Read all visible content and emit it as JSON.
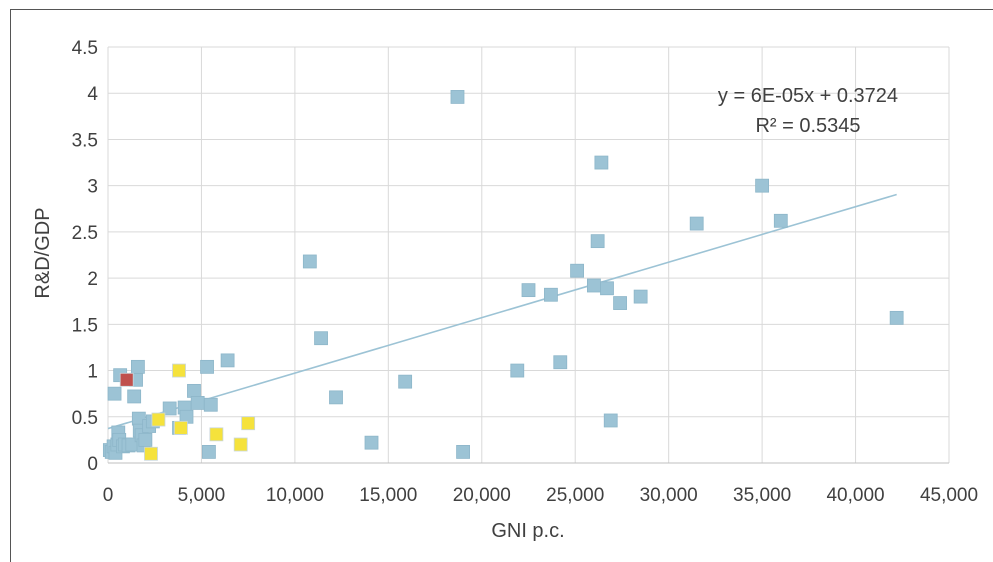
{
  "chart_data": {
    "type": "scatter",
    "xlabel": "GNI p.c.",
    "ylabel": "R&D/GDP",
    "xlim": [
      0,
      45000
    ],
    "ylim": [
      0,
      4.5
    ],
    "x_ticks": [
      "0",
      "5,000",
      "10,000",
      "15,000",
      "20,000",
      "25,000",
      "30,000",
      "35,000",
      "40,000",
      "45,000"
    ],
    "y_ticks": [
      "0",
      "0.5",
      "1",
      "1.5",
      "2",
      "2.5",
      "3",
      "3.5",
      "4",
      "4.5"
    ],
    "grid": "vertical and horizontal",
    "trendline": {
      "equation": "y = 6E-05x + 0.3724",
      "r_squared": "R² = 0.5345",
      "slope": 6e-05,
      "intercept": 0.3724,
      "x_range": [
        0,
        42200
      ],
      "color": "#9cc3d5"
    },
    "series": [
      {
        "color": "#9cc3d5",
        "points": [
          [
            100,
            0.14
          ],
          [
            200,
            0.12
          ],
          [
            300,
            0.18
          ],
          [
            400,
            0.11
          ],
          [
            500,
            0.2
          ],
          [
            350,
            0.75
          ],
          [
            550,
            0.33
          ],
          [
            650,
            0.95
          ],
          [
            600,
            0.25
          ],
          [
            800,
            0.18
          ],
          [
            900,
            0.2
          ],
          [
            1100,
            0.19
          ],
          [
            1300,
            0.2
          ],
          [
            1400,
            0.72
          ],
          [
            1500,
            0.9
          ],
          [
            1600,
            1.04
          ],
          [
            1650,
            0.48
          ],
          [
            1700,
            0.35
          ],
          [
            1800,
            0.3
          ],
          [
            1900,
            0.19
          ],
          [
            2000,
            0.25
          ],
          [
            2200,
            0.4
          ],
          [
            2400,
            0.45
          ],
          [
            3300,
            0.59
          ],
          [
            3800,
            0.38
          ],
          [
            4100,
            0.6
          ],
          [
            4200,
            0.5
          ],
          [
            4600,
            0.78
          ],
          [
            4800,
            0.65
          ],
          [
            5300,
            1.04
          ],
          [
            5400,
            0.12
          ],
          [
            5500,
            0.63
          ],
          [
            6400,
            1.11
          ],
          [
            10800,
            2.18
          ],
          [
            11400,
            1.35
          ],
          [
            12200,
            0.71
          ],
          [
            14100,
            0.22
          ],
          [
            15900,
            0.88
          ],
          [
            18700,
            3.96
          ],
          [
            19000,
            0.12
          ],
          [
            21900,
            1.0
          ],
          [
            22500,
            1.87
          ],
          [
            23700,
            1.82
          ],
          [
            24200,
            1.09
          ],
          [
            25100,
            2.08
          ],
          [
            26000,
            1.92
          ],
          [
            26200,
            2.4
          ],
          [
            26400,
            3.25
          ],
          [
            26700,
            1.89
          ],
          [
            26900,
            0.46
          ],
          [
            27400,
            1.73
          ],
          [
            28500,
            1.8
          ],
          [
            31500,
            2.59
          ],
          [
            35000,
            3.0
          ],
          [
            36000,
            2.62
          ],
          [
            42200,
            1.57
          ]
        ]
      },
      {
        "color": "#f5e23c",
        "points": [
          [
            2300,
            0.1
          ],
          [
            2700,
            0.47
          ],
          [
            3800,
            1.0
          ],
          [
            3900,
            0.38
          ],
          [
            5800,
            0.31
          ],
          [
            7100,
            0.2
          ],
          [
            7500,
            0.43
          ]
        ]
      },
      {
        "color": "#c0504d",
        "points": [
          [
            1000,
            0.9
          ]
        ]
      }
    ]
  }
}
